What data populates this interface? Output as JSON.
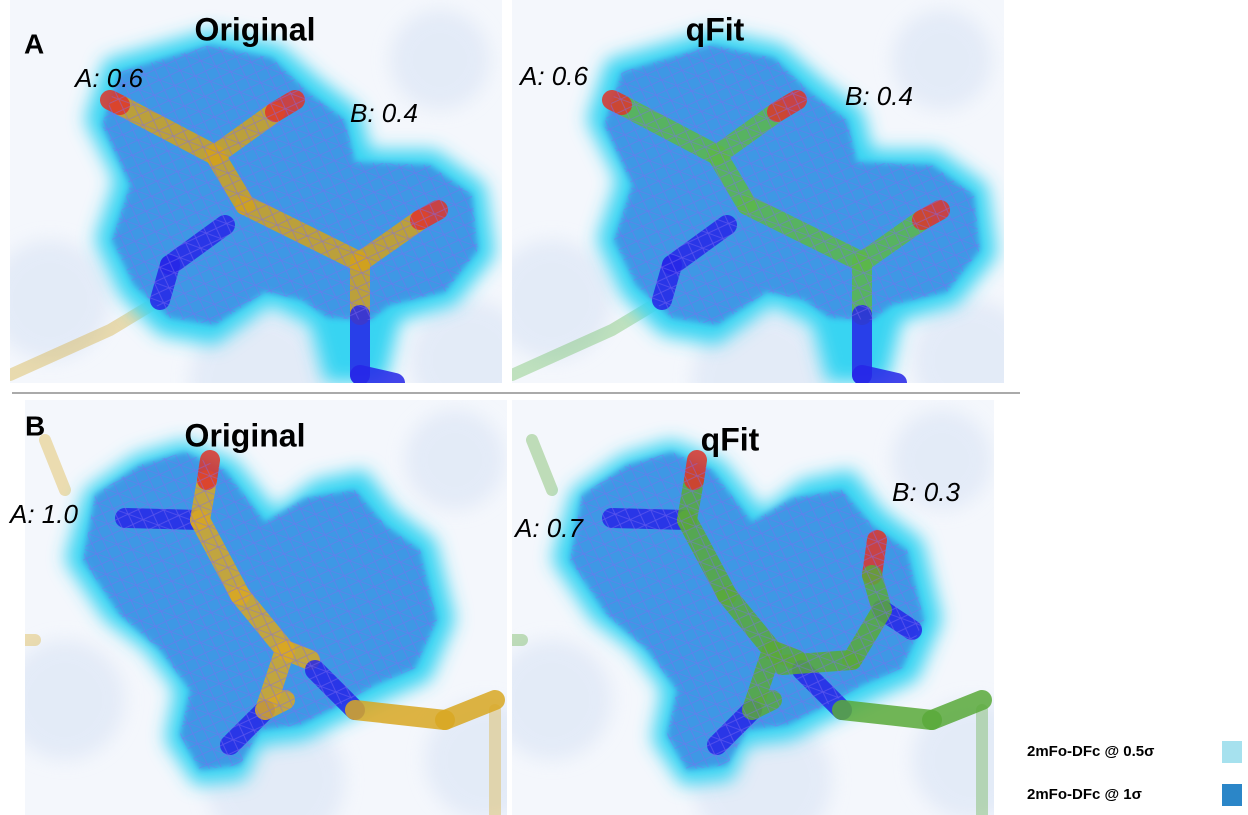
{
  "panels": [
    {
      "letter": "A",
      "title": "Original",
      "labels": [
        "A: 0.6",
        "B: 0.4"
      ]
    },
    {
      "title": "qFit",
      "labels": [
        "A: 0.6",
        "B: 0.4"
      ]
    },
    {
      "letter": "B",
      "title": "Original",
      "labels": [
        "A: 1.0"
      ]
    },
    {
      "title": "qFit",
      "labels": [
        "A: 0.7",
        "B: 0.3"
      ]
    }
  ],
  "legend": [
    {
      "label": "2mFo-DFc @ 0.5σ",
      "color": "#a6e1ee"
    },
    {
      "label": "2mFo-DFc @ 1σ",
      "color": "#2b86c8"
    }
  ]
}
